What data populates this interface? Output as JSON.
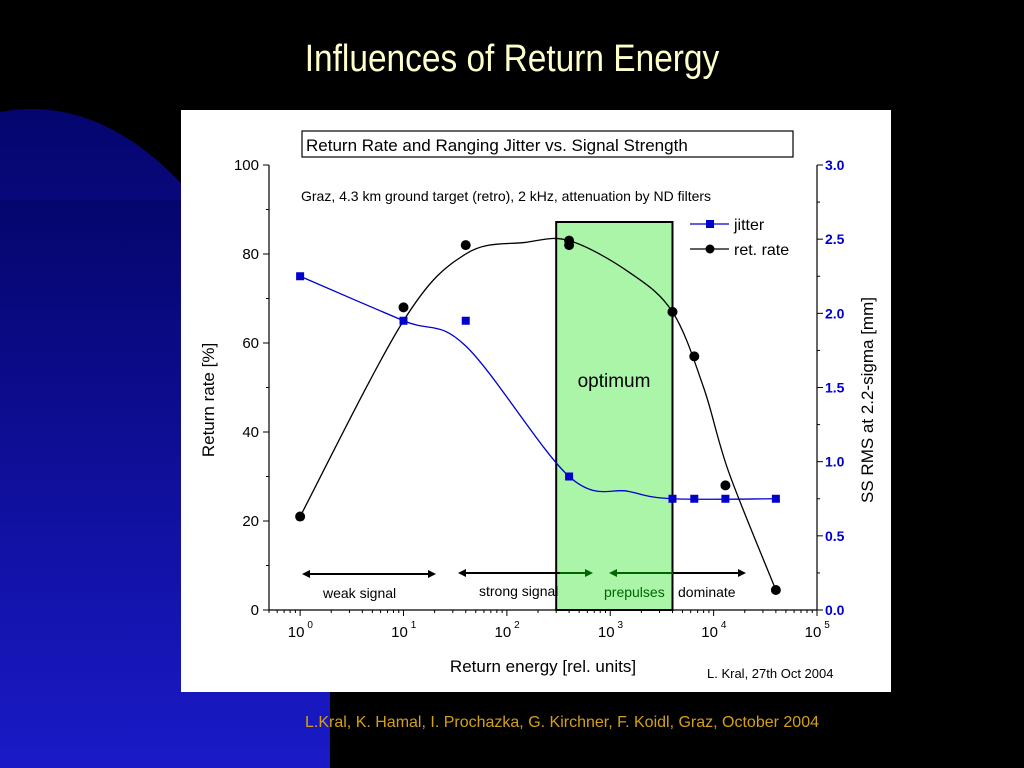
{
  "slide": {
    "title": "Influences of Return Energy",
    "footer": "L.Kral, K. Hamal, I. Prochazka, G. Kirchner, F. Koidl, Graz, October 2004"
  },
  "colors": {
    "jitter": "#0000cc",
    "ret_rate": "#000000",
    "optimum_fill": "#aaf5a8",
    "right_axis": "#0000cc",
    "annotation_green": "#006600",
    "footer": "#d4a017",
    "title": "#ffffcc"
  },
  "chart_data": {
    "type": "line",
    "title": "Return Rate and Ranging Jitter vs. Signal Strength",
    "subtitle": "Graz, 4.3 km ground target (retro), 2 kHz, attenuation by ND filters",
    "xlabel": "Return energy [rel. units]",
    "ylabel": "Return rate [%]",
    "y2label": "SS RMS at 2.2-sigma [mm]",
    "xscale": "log",
    "xlim": [
      0.5,
      100000
    ],
    "ylim": [
      0,
      100
    ],
    "y2lim": [
      0,
      3.0
    ],
    "x_ticks": [
      {
        "value": 1,
        "base": "10",
        "exp": "0"
      },
      {
        "value": 10,
        "base": "10",
        "exp": "1"
      },
      {
        "value": 100,
        "base": "10",
        "exp": "2"
      },
      {
        "value": 1000,
        "base": "10",
        "exp": "3"
      },
      {
        "value": 10000,
        "base": "10",
        "exp": "4"
      },
      {
        "value": 100000,
        "base": "10",
        "exp": "5"
      }
    ],
    "y_ticks": [
      "0",
      "20",
      "40",
      "60",
      "80",
      "100"
    ],
    "y2_ticks": [
      "0.0",
      "0.5",
      "1.0",
      "1.5",
      "2.0",
      "2.5",
      "3.0"
    ],
    "series": [
      {
        "name": "jitter",
        "axis": "right",
        "marker": "square",
        "points": [
          [
            1,
            2.25
          ],
          [
            10,
            1.95
          ],
          [
            40,
            1.95
          ],
          [
            400,
            0.9
          ],
          [
            4000,
            0.75
          ],
          [
            6500,
            0.75
          ],
          [
            13000,
            0.75
          ],
          [
            40000,
            0.75
          ]
        ]
      },
      {
        "name": "ret. rate",
        "axis": "left",
        "marker": "circle",
        "points": [
          [
            1,
            21
          ],
          [
            10,
            68
          ],
          [
            40,
            82
          ],
          [
            400,
            83
          ],
          [
            400,
            82
          ],
          [
            4000,
            67
          ],
          [
            6500,
            57
          ],
          [
            13000,
            28
          ],
          [
            40000,
            4.5
          ]
        ]
      }
    ],
    "optimum": {
      "label": "optimum",
      "x_range": [
        300,
        4000
      ]
    },
    "annotations": {
      "weak": "weak signal",
      "strong": "strong signal",
      "prepulses": "prepulses",
      "dominate": "dominate",
      "credit": "L. Kral, 27th Oct 2004"
    },
    "legend_position": "top-right",
    "grid": false
  }
}
